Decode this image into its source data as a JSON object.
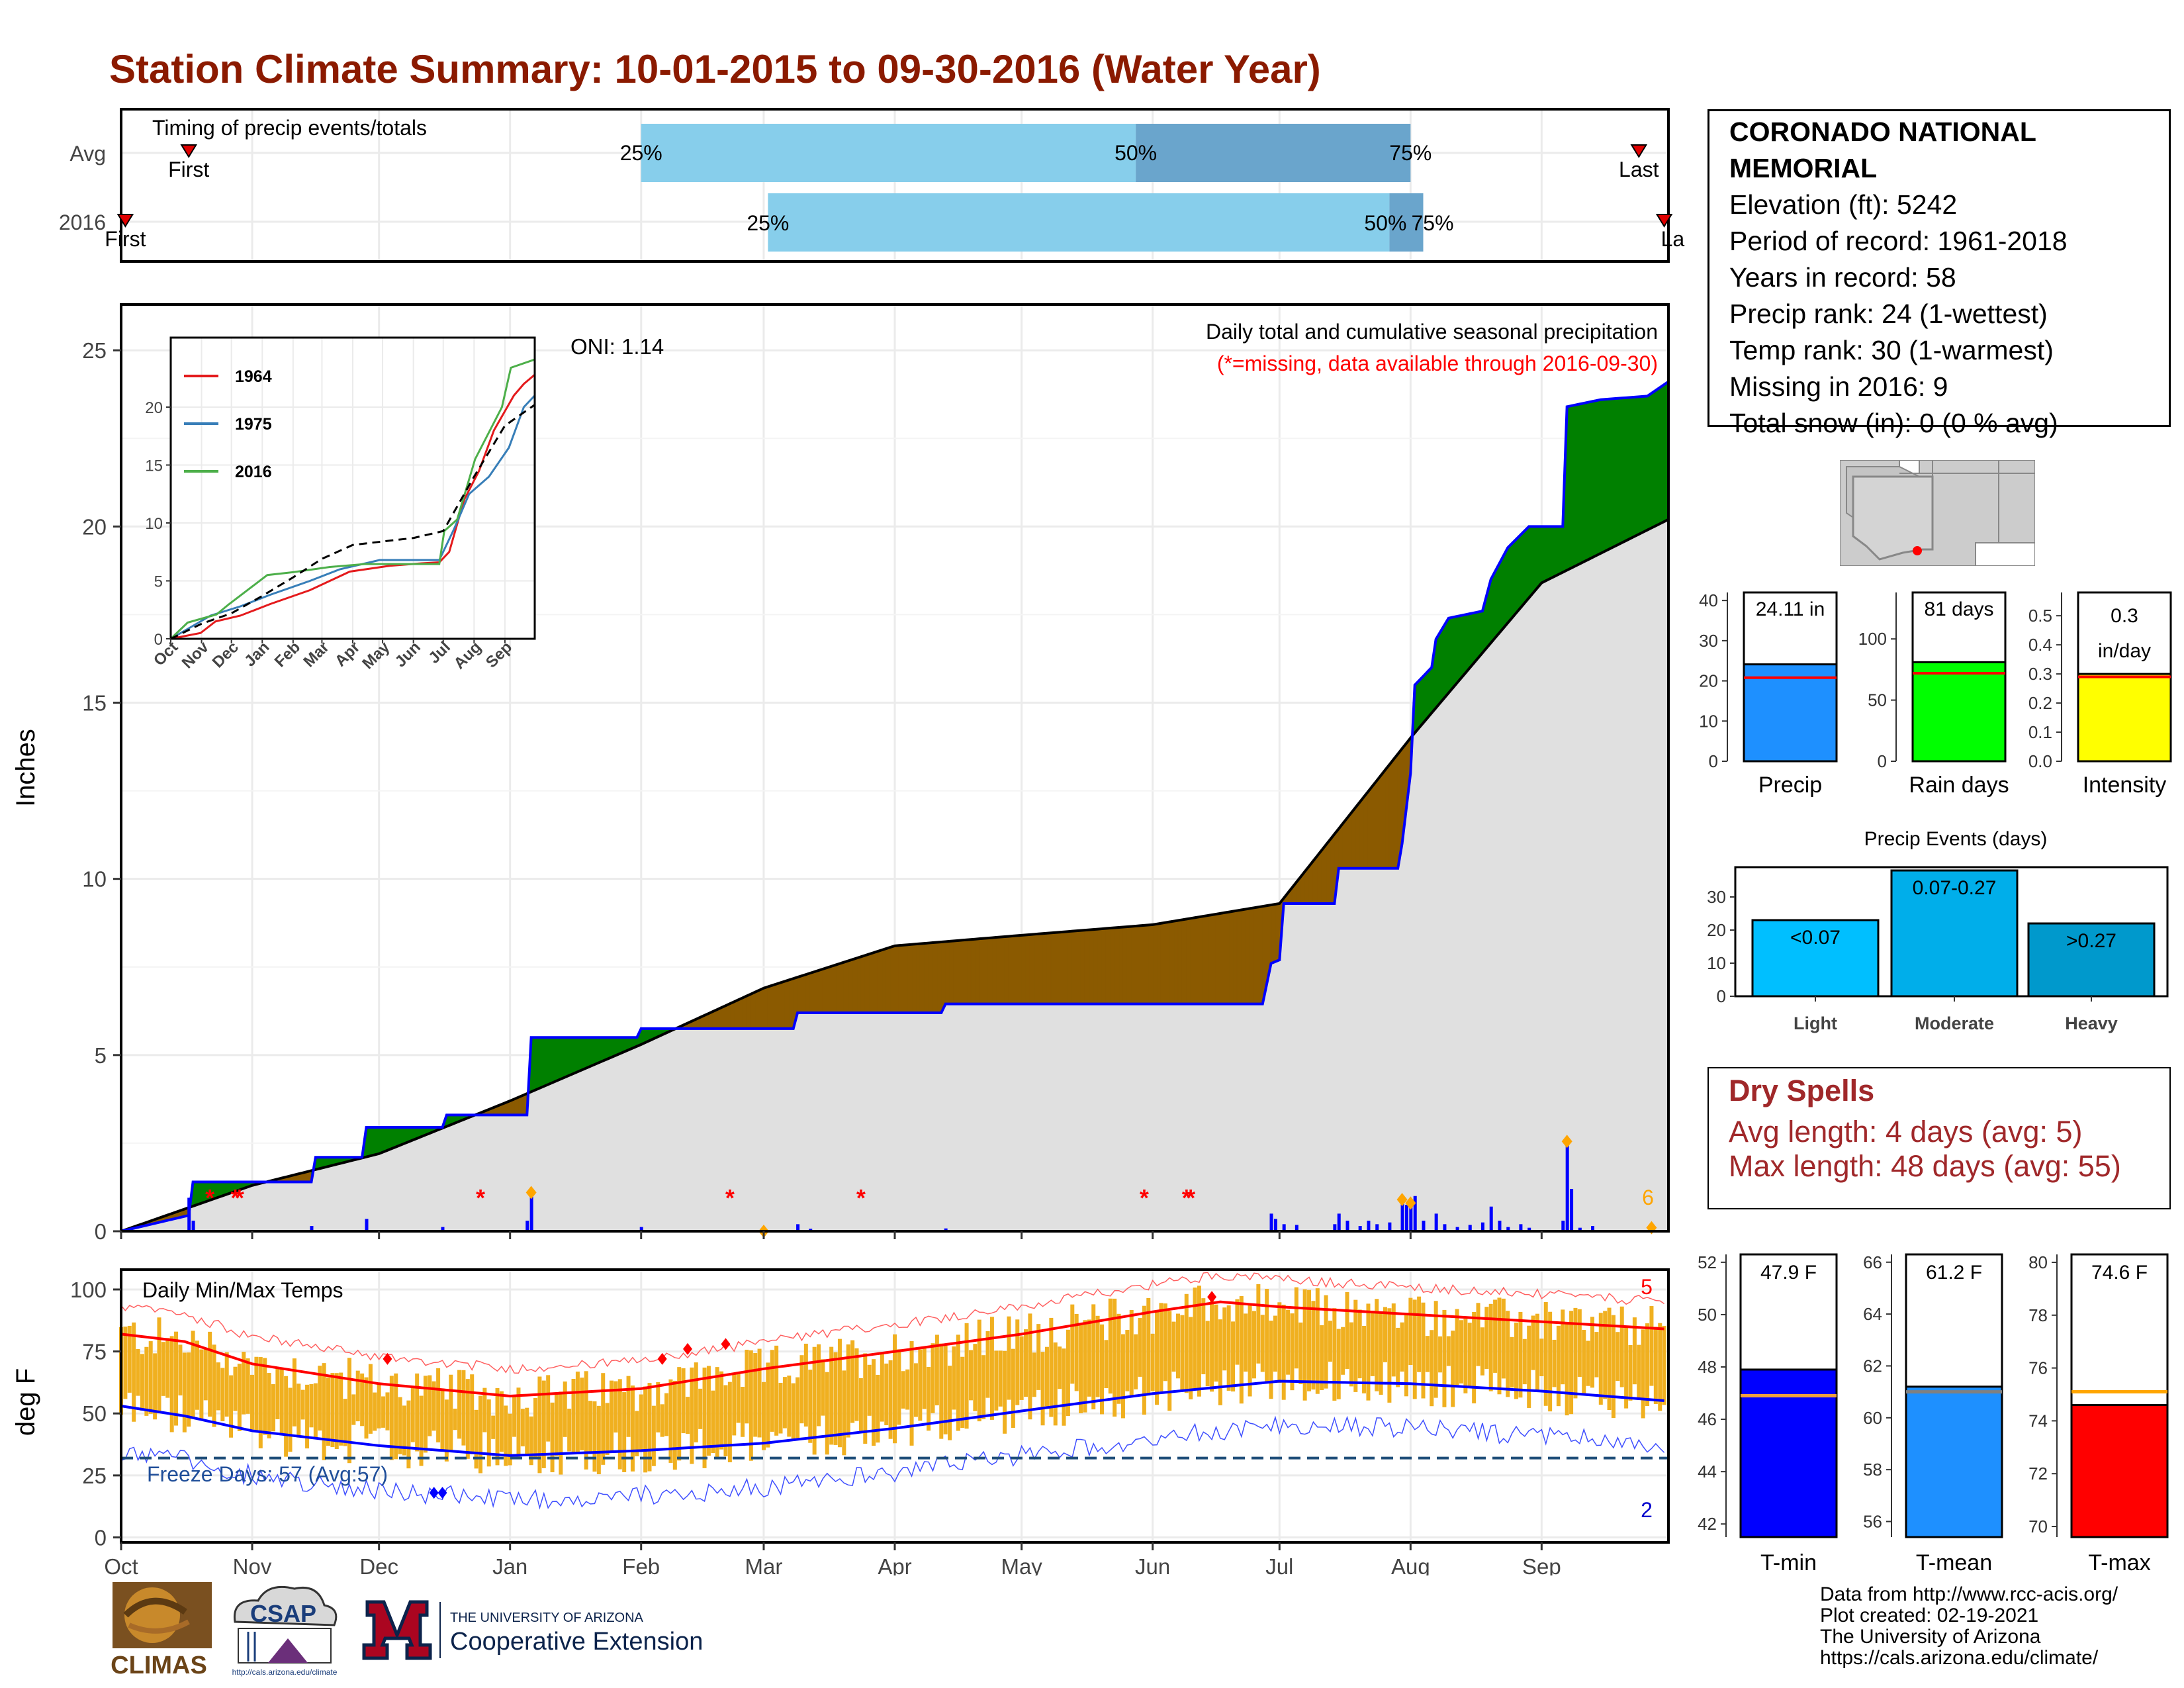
{
  "page_title": "Station Climate Summary: 10-01-2015 to 09-30-2016 (Water Year)",
  "colors": {
    "title": "#8B1A00",
    "above_avg": "#008000",
    "below_avg": "#8B5A00",
    "normal_fill": "#E0E0E0",
    "daily_precip": "#0000FF",
    "extreme_precip": "#FFA500",
    "temp_bar": "#F0B020",
    "dry_spells": "#A0282A"
  },
  "station": {
    "name": "CORONADO NATIONAL MEMORIAL",
    "elevation": "Elevation (ft): 5242",
    "period": "Period of record: 1961-2018",
    "years": "Years in record: 58",
    "precip_rank": "Precip rank: 24 (1-wettest)",
    "temp_rank": "Temp rank: 30 (1-warmest)",
    "missing": "Missing in 2016: 9",
    "snow": "Total snow (in): 0 (0 % avg)"
  },
  "timing": {
    "title": "Timing of precip events/totals",
    "rows": [
      "Avg",
      "2016"
    ],
    "first": "First",
    "last": "Last",
    "last_cut": "La",
    "p25": "25%",
    "p50": "50%",
    "p75": "75%",
    "avg_first_day": 16,
    "avg_last_day": 359,
    "avg_p25": 123,
    "avg_p50": 240,
    "avg_p75": 305,
    "yr_first_day": 1,
    "yr_last_day": 365,
    "yr_p25": 153,
    "yr_p50": 300,
    "yr_p75": 308
  },
  "months": [
    "Oct",
    "Nov",
    "Dec",
    "Jan",
    "Feb",
    "Mar",
    "Apr",
    "May",
    "Jun",
    "Jul",
    "Aug",
    "Sep"
  ],
  "month_start_days": [
    0,
    31,
    61,
    92,
    123,
    152,
    183,
    213,
    244,
    274,
    305,
    336
  ],
  "precip_panel": {
    "ylabel": "Inches",
    "header": "Daily total and cumulative seasonal precipitation",
    "missing_note": "(*=missing, data available through 2016-09-30)",
    "oni": "ONI: 1.14",
    "extreme_count": "6",
    "missing_day_indices": [
      21,
      27,
      28,
      85,
      144,
      175,
      242,
      252,
      253
    ]
  },
  "inset": {
    "years": [
      "1964",
      "1975",
      "2016"
    ],
    "colors": [
      "#E41A1C",
      "#377EB8",
      "#4DAF4A"
    ],
    "months": [
      "Oct",
      "Nov",
      "Dec",
      "Jan",
      "Feb",
      "Mar",
      "Apr",
      "May",
      "Jun",
      "Jul",
      "Aug",
      "Sep"
    ],
    "yticks": [
      0,
      5,
      10,
      15,
      20
    ]
  },
  "bar_panels": [
    {
      "label": "Precip",
      "value_label": "24.11 in",
      "value": 24.11,
      "avg": 20.8,
      "ymax": 42,
      "ticks": [
        0,
        10,
        20,
        30,
        40
      ],
      "color": "#1E90FF"
    },
    {
      "label": "Rain days",
      "value_label": "81 days",
      "value": 81,
      "avg": 72,
      "ymax": 138,
      "ticks": [
        0,
        50,
        100
      ],
      "color": "#00FF00"
    },
    {
      "label": "Intensity",
      "value_label_1": "0.3",
      "value_label_2": "in/day",
      "value": 0.3,
      "avg": 0.29,
      "ymax": 0.58,
      "ticks": [
        0,
        0.1,
        0.2,
        0.3,
        0.4,
        0.5
      ],
      "tick_labels": [
        "0.0",
        "0.1",
        "0.2",
        "0.3",
        "0.4",
        "0.5"
      ],
      "color": "#FFFF00"
    }
  ],
  "events_chart": {
    "title": "Precip Events (days)",
    "categories": [
      "Light",
      "Moderate",
      "Heavy"
    ],
    "values": [
      23,
      38,
      22
    ],
    "value_labels": [
      "<0.07",
      "0.07-0.27",
      ">0.27"
    ],
    "colors": [
      "#00BFFF",
      "#00AEEA",
      "#0099CC"
    ],
    "ticks": [
      0,
      10,
      20,
      30
    ],
    "ymax": 39
  },
  "dry_spells": {
    "title": "Dry Spells",
    "avg": "Avg length: 4 days (avg: 5)",
    "max": "Max length: 48 days (avg: 55)"
  },
  "temp_panel": {
    "ylabel": "deg F",
    "header": "Daily Min/Max Temps",
    "freeze": "Freeze Days: 57 (Avg:57)",
    "record_high_count": "5",
    "record_low_count": "2",
    "yticks": [
      0,
      25,
      50,
      75,
      100
    ]
  },
  "temp_bars": [
    {
      "label": "T-min",
      "value_label": "47.9 F",
      "value": 47.9,
      "avg": 46.9,
      "ymin": 41.5,
      "ymax": 52.3,
      "ticks": [
        42,
        44,
        46,
        48,
        50,
        52
      ],
      "color": "#0000FF",
      "avg_color": "#F0A040"
    },
    {
      "label": "T-mean",
      "value_label": "61.2 F",
      "value": 61.2,
      "avg": 61.0,
      "ymin": 55.4,
      "ymax": 66.3,
      "ticks": [
        56,
        58,
        60,
        62,
        64,
        66
      ],
      "color": "#1E90FF",
      "avg_color": "#808080"
    },
    {
      "label": "T-max",
      "value_label": "74.6 F",
      "value": 74.6,
      "avg": 75.1,
      "ymin": 69.6,
      "ymax": 80.3,
      "ticks": [
        70,
        72,
        74,
        76,
        78,
        80
      ],
      "color": "#FF0000",
      "avg_color": "#FFA500"
    }
  ],
  "credits": [
    "Data from http://www.rcc-acis.org/",
    "Plot created: 02-19-2021",
    "The University of Arizona",
    "https://cals.arizona.edu/climate/"
  ],
  "logos": {
    "climas": "CLIMAS",
    "csap": "CSAP",
    "csap_url": "http://cals.arizona.edu/climate",
    "ua_line1": "THE UNIVERSITY OF ARIZONA",
    "ua_line2": "Cooperative Extension"
  },
  "chart_data": [
    {
      "type": "bar",
      "title": "Timing of precip events/totals",
      "categories": [
        "Avg",
        "2016"
      ],
      "series": [
        {
          "name": "25%",
          "values": [
            123,
            153
          ]
        },
        {
          "name": "50%",
          "values": [
            240,
            300
          ]
        },
        {
          "name": "75%",
          "values": [
            305,
            308
          ]
        }
      ]
    },
    {
      "type": "area",
      "title": "Daily total and cumulative seasonal precipitation",
      "ylabel": "Inches",
      "ylim": [
        0,
        26.3
      ],
      "x": [
        "Oct",
        "Nov",
        "Dec",
        "Jan",
        "Feb",
        "Mar",
        "Apr",
        "May",
        "Jun",
        "Jul",
        "Aug",
        "Sep"
      ],
      "series": [
        {
          "name": "2016 cumulative",
          "values": [
            0,
            1.4,
            2.6,
            4.3,
            5.5,
            6.2,
            6.4,
            6.4,
            6.4,
            7.7,
            15.5,
            23.4
          ]
        },
        {
          "name": "average cumulative",
          "values": [
            0,
            1.3,
            2.2,
            3.7,
            5.3,
            6.9,
            8.1,
            8.4,
            8.7,
            9.3,
            14.0,
            18.4
          ]
        }
      ]
    },
    {
      "type": "line",
      "title": "Daily Min/Max Temps",
      "ylabel": "deg F",
      "ylim": [
        -2,
        108
      ],
      "x": [
        "Oct",
        "Nov",
        "Dec",
        "Jan",
        "Feb",
        "Mar",
        "Apr",
        "May",
        "Jun",
        "Jul",
        "Aug",
        "Sep"
      ],
      "series": [
        {
          "name": "avg max",
          "values": [
            82,
            68,
            60,
            57,
            61,
            68,
            75,
            82,
            91,
            93,
            90,
            86
          ]
        },
        {
          "name": "avg min",
          "values": [
            50,
            43,
            37,
            33,
            35,
            38,
            44,
            51,
            59,
            63,
            62,
            59
          ]
        }
      ]
    },
    {
      "type": "bar",
      "title": "Precip Events (days)",
      "categories": [
        "Light",
        "Moderate",
        "Heavy"
      ],
      "values": [
        23,
        38,
        22
      ]
    }
  ]
}
